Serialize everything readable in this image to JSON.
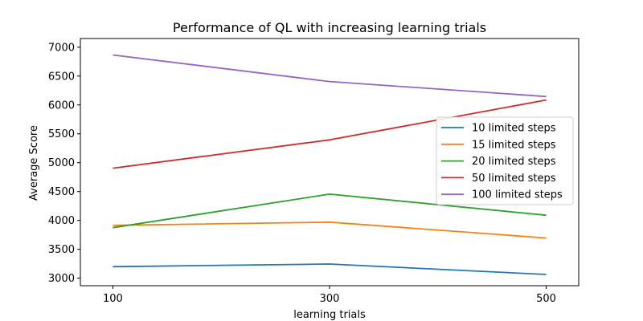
{
  "chart_data": {
    "type": "line",
    "title": "Performance of QL with increasing learning trials",
    "xlabel": "learning trials",
    "ylabel": "Average Score",
    "x": [
      100,
      300,
      500
    ],
    "xticks": [
      "100",
      "300",
      "500"
    ],
    "yticks": [
      "3000",
      "3500",
      "4000",
      "4500",
      "5000",
      "5500",
      "6000",
      "6500",
      "7000"
    ],
    "ylim": [
      2870,
      7150
    ],
    "xlim": [
      70,
      530
    ],
    "grid": false,
    "legend_position": "center-right",
    "series": [
      {
        "name": "10 limited steps",
        "color": "#1f77b4",
        "values": [
          3200,
          3245,
          3065
        ]
      },
      {
        "name": "15 limited steps",
        "color": "#ff7f0e",
        "values": [
          3915,
          3970,
          3695
        ]
      },
      {
        "name": "20 limited steps",
        "color": "#2ca02c",
        "values": [
          3875,
          4455,
          4090
        ]
      },
      {
        "name": "50 limited steps",
        "color": "#d62728",
        "values": [
          4905,
          5395,
          6085
        ]
      },
      {
        "name": "100 limited steps",
        "color": "#9467bd",
        "values": [
          6865,
          6405,
          6145
        ]
      }
    ]
  }
}
